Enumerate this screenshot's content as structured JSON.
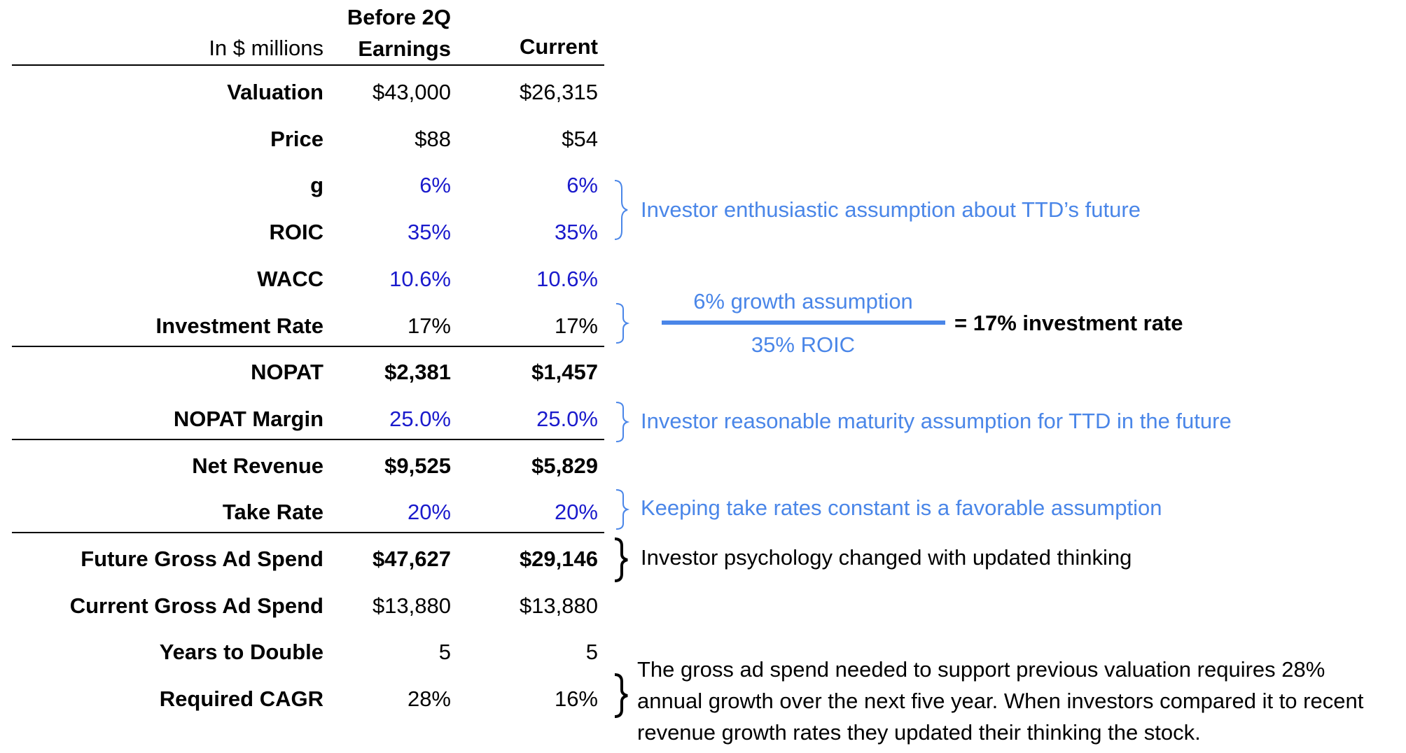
{
  "table": {
    "unit": "In $ millions",
    "columns": [
      "Before 2Q Earnings",
      "Current"
    ],
    "rows": [
      {
        "label": "Valuation",
        "values": [
          "$43,000",
          "$26,315"
        ]
      },
      {
        "label": "Price",
        "values": [
          "$88",
          "$54"
        ]
      },
      {
        "label": "g",
        "values": [
          "6%",
          "6%"
        ],
        "color": "#1a1acc"
      },
      {
        "label": "ROIC",
        "values": [
          "35%",
          "35%"
        ],
        "color": "#1a1acc"
      },
      {
        "label": "WACC",
        "values": [
          "10.6%",
          "10.6%"
        ],
        "color": "#1a1acc"
      },
      {
        "label": "Investment Rate",
        "values": [
          "17%",
          "17%"
        ]
      },
      {
        "label": "NOPAT",
        "values": [
          "$2,381",
          "$1,457"
        ],
        "bold": true
      },
      {
        "label": "NOPAT Margin",
        "values": [
          "25.0%",
          "25.0%"
        ],
        "color": "#1a1acc"
      },
      {
        "label": "Net Revenue",
        "values": [
          "$9,525",
          "$5,829"
        ],
        "bold": true
      },
      {
        "label": "Take Rate",
        "values": [
          "20%",
          "20%"
        ],
        "color": "#1a1acc"
      },
      {
        "label": "Future Gross Ad Spend",
        "values": [
          "$47,627",
          "$29,146"
        ],
        "bold": true
      },
      {
        "label": "Current Gross Ad Spend",
        "values": [
          "$13,880",
          "$13,880"
        ]
      },
      {
        "label": "Years to Double",
        "values": [
          "5",
          "5"
        ]
      },
      {
        "label": "Required CAGR",
        "values": [
          "28%",
          "16%"
        ]
      }
    ]
  },
  "annotations": {
    "enthusiasm": "Investor enthusiastic assumption about TTD’s future",
    "formula": {
      "numerator": "6% growth assumption",
      "denominator": "35% ROIC",
      "result": "= 17% investment rate"
    },
    "maturity": "Investor reasonable maturity assumption for TTD in the future",
    "take_rate": "Keeping take rates constant is a favorable assumption",
    "psychology": "Investor psychology changed with updated thinking",
    "growth": {
      "lines": [
        "The gross ad spend needed to support previous valuation requires 28%",
        "annual growth over the next five year. When investors compared it to recent",
        "revenue growth rates they updated their thinking the stock."
      ]
    }
  }
}
